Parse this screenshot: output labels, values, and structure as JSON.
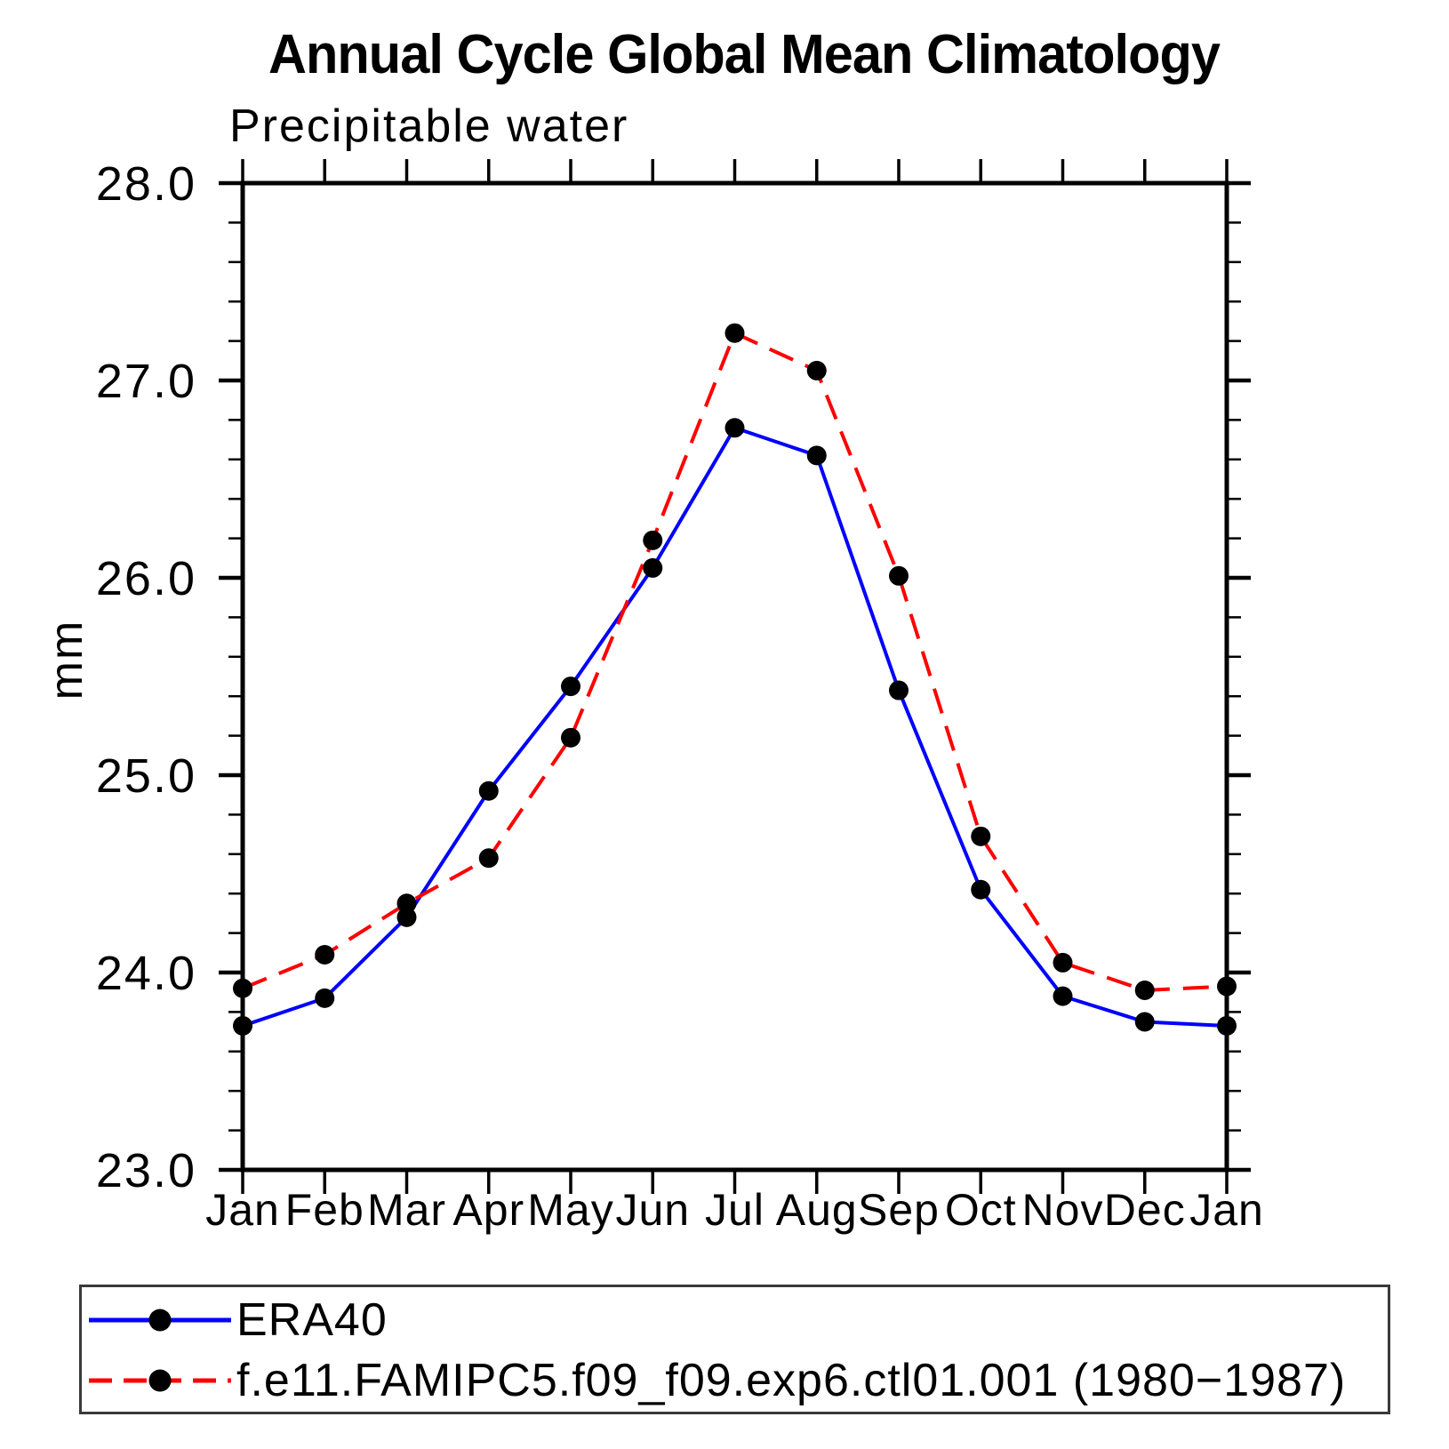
{
  "chart_data": {
    "type": "line",
    "title": "Annual Cycle Global Mean Climatology",
    "subtitle": "Precipitable water",
    "ylabel": "mm",
    "xlabel": "",
    "categories": [
      "Jan",
      "Feb",
      "Mar",
      "Apr",
      "May",
      "Jun",
      "Jul",
      "Aug",
      "Sep",
      "Oct",
      "Nov",
      "Dec",
      "Jan"
    ],
    "ylim": [
      23.0,
      28.0
    ],
    "yticks": [
      23.0,
      24.0,
      25.0,
      26.0,
      27.0,
      28.0
    ],
    "ytick_labels": [
      "23.0",
      "24.0",
      "25.0",
      "26.0",
      "27.0",
      "28.0"
    ],
    "y_minor_step": 0.2,
    "grid": false,
    "legend_position": "bottom",
    "marker": "filled-circle",
    "marker_color": "#000000",
    "axis_color": "#000000",
    "series": [
      {
        "name": "ERA40",
        "color": "#0000ff",
        "style": "solid",
        "values": [
          23.73,
          23.87,
          24.28,
          24.92,
          25.45,
          26.05,
          26.76,
          26.62,
          25.43,
          24.42,
          23.88,
          23.75,
          23.73
        ]
      },
      {
        "name": "f.e11.FAMIPC5.f09_f09.exp6.ctl01.001 (1980−1987)",
        "color": "#ff0000",
        "style": "dashed",
        "values": [
          23.92,
          24.09,
          24.35,
          24.58,
          25.19,
          26.19,
          27.24,
          27.05,
          26.01,
          24.69,
          24.05,
          23.91,
          23.93
        ]
      }
    ]
  },
  "legend": {
    "border_color": "#3a3a3a"
  }
}
